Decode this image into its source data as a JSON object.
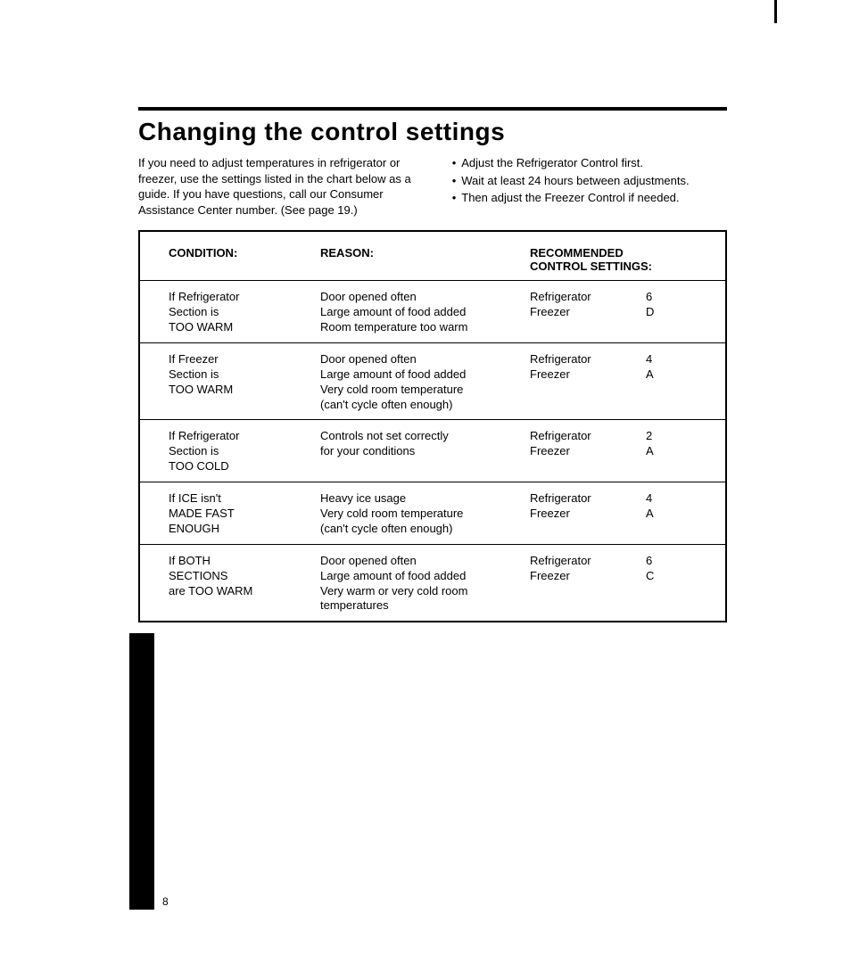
{
  "title": "Changing the control settings",
  "intro_left": "If you need to adjust temperatures in refrigerator or freezer, use the settings listed in the chart below as a guide. If you have questions, call our Consumer Assistance Center number. (See page 19.)",
  "intro_right": [
    "Adjust the Refrigerator Control first.",
    "Wait at least 24 hours between adjustments.",
    "Then adjust the Freezer Control if needed."
  ],
  "headers": {
    "condition": "CONDITION:",
    "reason": "REASON:",
    "settings_line1": "RECOMMENDED",
    "settings_line2": "CONTROL SETTINGS:"
  },
  "rows": [
    {
      "condition": [
        "If Refrigerator",
        "Section is",
        "TOO WARM"
      ],
      "reason": [
        "Door opened often",
        "Large amount of food added",
        "Room temperature too warm"
      ],
      "settings": [
        {
          "label": "Refrigerator",
          "value": "6"
        },
        {
          "label": "Freezer",
          "value": "D"
        }
      ]
    },
    {
      "condition": [
        "If Freezer",
        "Section is",
        "TOO WARM"
      ],
      "reason": [
        "Door opened often",
        "Large amount of food added",
        "Very cold room temperature",
        "(can't cycle often enough)"
      ],
      "settings": [
        {
          "label": "Refrigerator",
          "value": "4"
        },
        {
          "label": "Freezer",
          "value": "A"
        }
      ]
    },
    {
      "condition": [
        "If Refrigerator",
        "Section is",
        "TOO COLD"
      ],
      "reason": [
        "Controls not set correctly",
        "for your conditions"
      ],
      "settings": [
        {
          "label": "Refrigerator",
          "value": "2"
        },
        {
          "label": "Freezer",
          "value": "A"
        }
      ]
    },
    {
      "condition": [
        "If ICE isn't",
        "MADE FAST",
        "ENOUGH"
      ],
      "reason": [
        "Heavy ice usage",
        "Very cold room temperature",
        "(can't cycle often enough)"
      ],
      "settings": [
        {
          "label": "Refrigerator",
          "value": "4"
        },
        {
          "label": "Freezer",
          "value": "A"
        }
      ]
    },
    {
      "condition": [
        "If BOTH",
        "SECTIONS",
        "are TOO WARM"
      ],
      "reason": [
        "Door opened often",
        "Large amount of food added",
        "Very warm or very cold room",
        "temperatures"
      ],
      "settings": [
        {
          "label": "Refrigerator",
          "value": "6"
        },
        {
          "label": "Freezer",
          "value": "C"
        }
      ]
    }
  ],
  "page_number": "8"
}
